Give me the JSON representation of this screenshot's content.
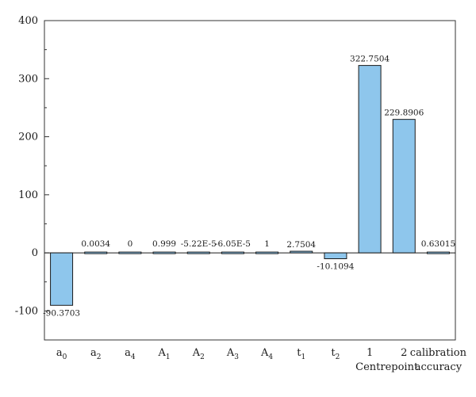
{
  "chart_data": {
    "type": "bar",
    "categories": [
      {
        "base": "a",
        "sub": "0"
      },
      {
        "base": "a",
        "sub": "2"
      },
      {
        "base": "a",
        "sub": "4"
      },
      {
        "base": "A",
        "sub": "1"
      },
      {
        "base": "A",
        "sub": "2"
      },
      {
        "base": "A",
        "sub": "3"
      },
      {
        "base": "A",
        "sub": "4"
      },
      {
        "base": "t",
        "sub": "1"
      },
      {
        "base": "t",
        "sub": "2"
      },
      {
        "base": "1",
        "sub": ""
      },
      {
        "base": "2",
        "sub": ""
      },
      {
        "base": "calibration",
        "sub": "",
        "line2": "accuracy"
      }
    ],
    "values": [
      -90.3703,
      0.0034,
      0,
      0.999,
      -5.22e-05,
      -6.05e-05,
      1,
      2.7504,
      -10.1094,
      322.7504,
      229.8906,
      0.63015
    ],
    "value_labels": [
      "-90.3703",
      "0.0034",
      "0",
      "0.999",
      "-5.22E-5",
      "-6.05E-5",
      "1",
      "2.7504",
      "-10.1094",
      "322.7504",
      "229.8906",
      "0.63015"
    ],
    "group_label": "Centrepoint",
    "ylim": [
      -150,
      400
    ],
    "yticks": [
      -100,
      0,
      100,
      200,
      300,
      400
    ],
    "ytick_labels": [
      "-100",
      "0",
      "100",
      "200",
      "300",
      "400"
    ],
    "grid": false,
    "colors": {
      "bar_fill": "#8ec6ec",
      "bar_stroke": "#1a1a1a",
      "axis": "#333333"
    }
  }
}
